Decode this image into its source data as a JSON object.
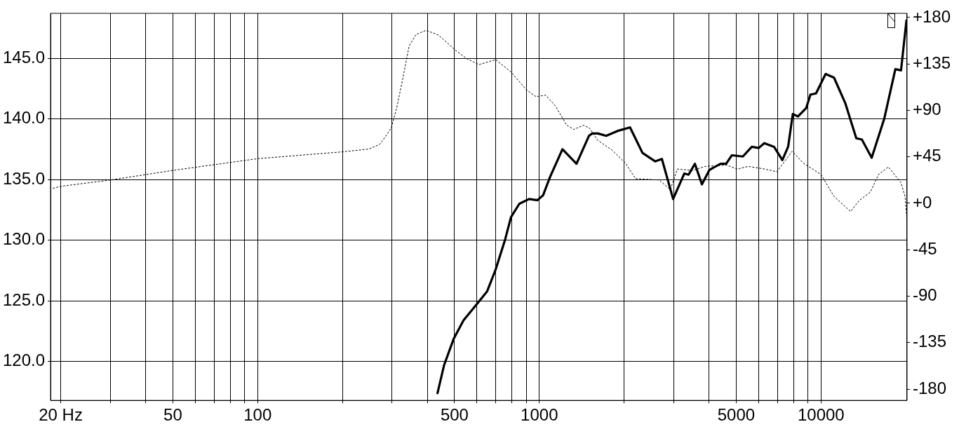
{
  "chart_data": {
    "type": "line",
    "xlim": [
      18.4,
      20200
    ],
    "log": "x",
    "grid": true,
    "legend": false,
    "marker": "none",
    "xticks": [
      {
        "value": 20,
        "label": "20 Hz"
      },
      {
        "value": 30,
        "label": null
      },
      {
        "value": 40,
        "label": null
      },
      {
        "value": 50,
        "label": "50"
      },
      {
        "value": 60,
        "label": null
      },
      {
        "value": 70,
        "label": null
      },
      {
        "value": 80,
        "label": null
      },
      {
        "value": 90,
        "label": null
      },
      {
        "value": 100,
        "label": "100"
      },
      {
        "value": 200,
        "label": null
      },
      {
        "value": 300,
        "label": null
      },
      {
        "value": 400,
        "label": null
      },
      {
        "value": 500,
        "label": "500"
      },
      {
        "value": 600,
        "label": null
      },
      {
        "value": 700,
        "label": null
      },
      {
        "value": 800,
        "label": null
      },
      {
        "value": 900,
        "label": null
      },
      {
        "value": 1000,
        "label": "1000"
      },
      {
        "value": 2000,
        "label": null
      },
      {
        "value": 3000,
        "label": null
      },
      {
        "value": 4000,
        "label": null
      },
      {
        "value": 5000,
        "label": "5000"
      },
      {
        "value": 6000,
        "label": null
      },
      {
        "value": 7000,
        "label": null
      },
      {
        "value": 8000,
        "label": null
      },
      {
        "value": 9000,
        "label": null
      },
      {
        "value": 10000,
        "label": "10000"
      }
    ],
    "ylim": [
      116.8,
      148.7
    ],
    "yticks": [
      {
        "value": 120,
        "label": "120.0"
      },
      {
        "value": 125,
        "label": "125.0"
      },
      {
        "value": 130,
        "label": "130.0"
      },
      {
        "value": 135,
        "label": "135.0"
      },
      {
        "value": 140,
        "label": "140.0"
      },
      {
        "value": 145,
        "label": "145.0"
      }
    ],
    "y2lim": [
      -191,
      184
    ],
    "y2ticks": [
      {
        "value": -180,
        "label": "-180"
      },
      {
        "value": -135,
        "label": "-135"
      },
      {
        "value": -90,
        "label": "-90"
      },
      {
        "value": -45,
        "label": "-45"
      },
      {
        "value": 0,
        "label": "+0"
      },
      {
        "value": 45,
        "label": "+45"
      },
      {
        "value": 90,
        "label": "+90"
      },
      {
        "value": 135,
        "label": "+135"
      },
      {
        "value": 180,
        "label": "+180"
      }
    ],
    "series": [
      {
        "color": "#000000",
        "line_style": "solid",
        "x": [
          435,
          459,
          497,
          538,
          603,
          653,
          700,
          757,
          793,
          849,
          920,
          985,
          1031,
          1091,
          1208,
          1355,
          1500,
          1541,
          1613,
          1727,
          1892,
          2099,
          2323,
          2576,
          2723,
          2985,
          3271,
          3386,
          3567,
          3777,
          4018,
          4399,
          4604,
          4822,
          5279,
          5679,
          6010,
          6290,
          6810,
          7290,
          7640,
          7940,
          8280,
          8860,
          9170,
          9600,
          10380,
          11120,
          12190,
          13340,
          13960,
          15130,
          16760,
          18360,
          19230,
          20100
        ],
        "values": [
          117.4,
          119.7,
          121.9,
          123.4,
          124.8,
          125.8,
          127.6,
          130.1,
          131.9,
          133.0,
          133.4,
          133.3,
          133.7,
          135.2,
          137.5,
          136.3,
          138.6,
          138.8,
          138.8,
          138.6,
          139.0,
          139.3,
          137.2,
          136.5,
          136.7,
          133.4,
          135.5,
          135.4,
          136.3,
          134.6,
          135.8,
          136.3,
          136.3,
          137.0,
          136.9,
          137.7,
          137.6,
          138.0,
          137.7,
          136.6,
          137.7,
          140.4,
          140.2,
          140.9,
          142.0,
          142.1,
          143.7,
          143.4,
          141.3,
          138.4,
          138.3,
          136.8,
          140.0,
          144.1,
          144.0,
          148.1
        ]
      },
      {
        "color": "#000000",
        "line_style": "dotted",
        "axis": "y2",
        "x": [
          18.8,
          20,
          30,
          50,
          100,
          200,
          248,
          271,
          278,
          298,
          311,
          326,
          345,
          365,
          396,
          438,
          503,
          550,
          610,
          700,
          793,
          899,
          973,
          1054,
          1142,
          1251,
          1325,
          1435,
          1506,
          1613,
          1809,
          2028,
          2195,
          2663,
          2918,
          3090,
          3500,
          3880,
          4605,
          5045,
          5520,
          6320,
          6970,
          7900,
          8650,
          10000,
          11120,
          12740,
          13650,
          14950,
          16000,
          17340,
          19230,
          19870,
          20200
        ],
        "values": [
          14.5,
          16.4,
          22.5,
          31.8,
          43.2,
          49.8,
          52.5,
          57.0,
          60.9,
          72.9,
          91.4,
          117.9,
          152.4,
          163.5,
          167.5,
          163.0,
          148.4,
          140.4,
          134.3,
          139.1,
          127.2,
          110.0,
          103.3,
          104.7,
          94.0,
          75.6,
          71.5,
          75.6,
          72.9,
          60.9,
          51.7,
          38.4,
          23.8,
          22.5,
          13.2,
          33.1,
          31.8,
          35.7,
          37.1,
          33.1,
          35.7,
          33.1,
          30.5,
          50.3,
          38.9,
          27.8,
          6.6,
          -8.0,
          2.6,
          10.6,
          27.8,
          35.2,
          19.9,
          6.6,
          -17.2
        ]
      }
    ]
  }
}
